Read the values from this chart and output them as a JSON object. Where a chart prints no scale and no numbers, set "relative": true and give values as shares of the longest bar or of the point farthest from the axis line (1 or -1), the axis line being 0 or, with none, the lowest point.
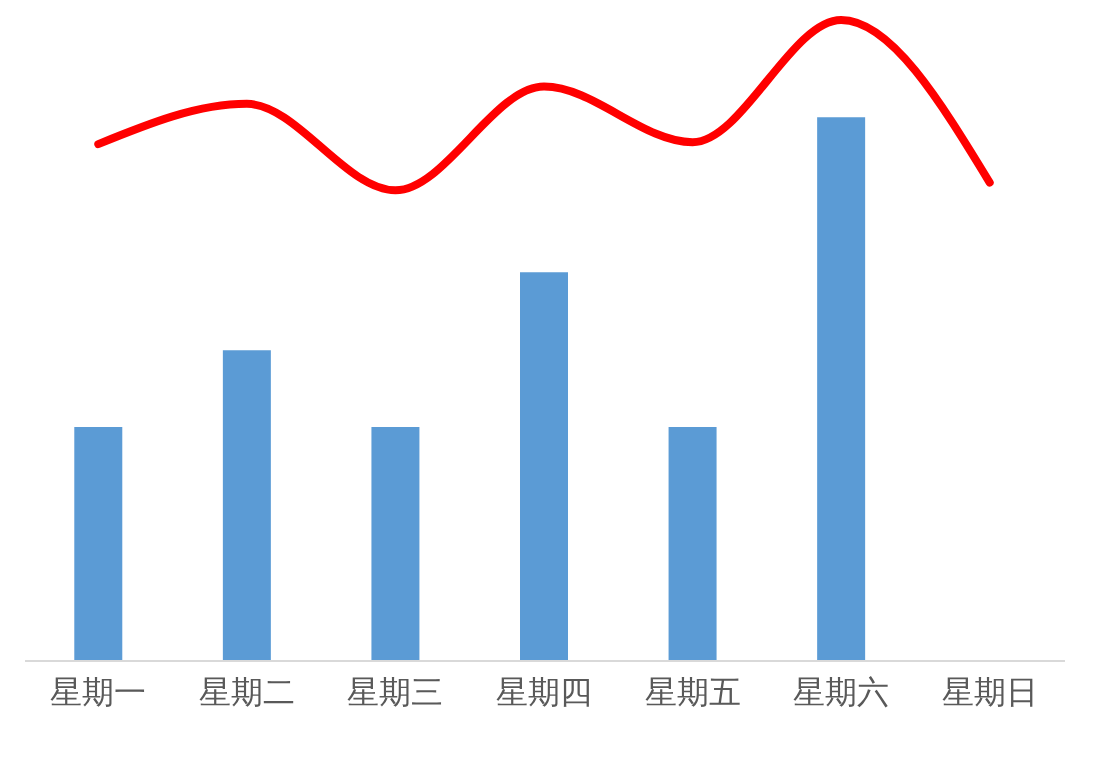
{
  "chart_data": {
    "type": "bar",
    "relative": true,
    "grid": false,
    "categories": [
      "星期一",
      "星期二",
      "星期三",
      "星期四",
      "星期五",
      "星期六",
      "星期日"
    ],
    "series": [
      {
        "color": "#5b9bd5",
        "values": [
          0.364,
          0.484,
          0.364,
          0.606,
          0.364,
          0.848,
          null
        ]
      },
      {
        "type": "line",
        "color": "#ff0000",
        "marker": "none",
        "line_style": "solid",
        "values": [
          0.806,
          0.869,
          0.734,
          0.896,
          0.809,
          1.0,
          0.746
        ]
      }
    ]
  }
}
